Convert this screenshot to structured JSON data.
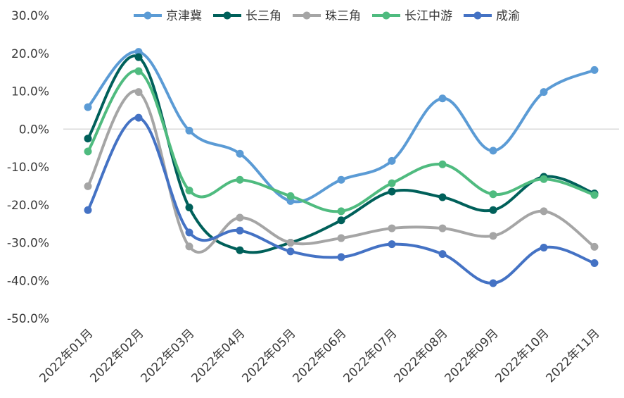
{
  "chart_data": {
    "type": "line",
    "title": "",
    "xlabel": "",
    "ylabel": "",
    "ylim": [
      -50,
      30
    ],
    "y_tick_step": 10,
    "y_format": "percent_1dp",
    "grid": "zero-line only",
    "legend_position": "top",
    "smooth": true,
    "categories": [
      "2022年01月",
      "2022年02月",
      "2022年03月",
      "2022年04月",
      "2022年05月",
      "2022年06月",
      "2022年07月",
      "2022年08月",
      "2022年09月",
      "2022年10月",
      "2022年11月"
    ],
    "series": [
      {
        "name": "京津冀",
        "color": "#5b9bd5",
        "values": [
          5.8,
          20.4,
          -0.4,
          -6.5,
          -19.0,
          -13.4,
          -8.4,
          8.1,
          -5.7,
          9.8,
          15.6
        ]
      },
      {
        "name": "长三角",
        "color": "#00605a",
        "values": [
          -2.5,
          19.0,
          -20.7,
          -32.0,
          -30.0,
          -24.1,
          -16.5,
          -18.0,
          -21.4,
          -12.6,
          -17.0
        ]
      },
      {
        "name": "珠三角",
        "color": "#a5a5a5",
        "values": [
          -15.1,
          9.8,
          -31.0,
          -23.4,
          -30.0,
          -28.8,
          -26.2,
          -26.2,
          -28.2,
          -21.7,
          -31.1
        ]
      },
      {
        "name": "长江中游",
        "color": "#4fbb7f",
        "values": [
          -5.9,
          15.3,
          -16.2,
          -13.4,
          -17.7,
          -21.7,
          -14.3,
          -9.3,
          -17.2,
          -13.2,
          -17.4
        ]
      },
      {
        "name": "成渝",
        "color": "#4472c4",
        "values": [
          -21.4,
          3.0,
          -27.3,
          -26.8,
          -32.3,
          -33.8,
          -30.4,
          -33.0,
          -40.7,
          -31.3,
          -35.4
        ]
      }
    ]
  }
}
